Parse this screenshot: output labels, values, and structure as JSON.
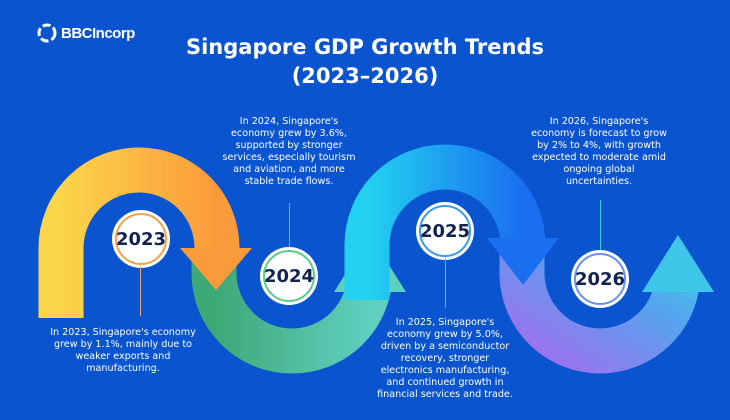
{
  "logo": {
    "text": "BBCIncorp"
  },
  "title": {
    "line1": "Singapore GDP Growth Trends",
    "line2": "(2023–2026)"
  },
  "milestones": [
    {
      "year": "2023",
      "text": [
        "In 2023, Singapore's economy",
        "grew by 1.1%, mainly due to",
        "weaker exports and",
        "manufacturing."
      ],
      "color": "#f5a04a"
    },
    {
      "year": "2024",
      "text": [
        "In 2024, Singapore's",
        "economy grew by 3.6%,",
        "supported by stronger",
        "services, especially tourism",
        "and aviation, and more",
        "stable trade flows."
      ],
      "color": "#5cc98f"
    },
    {
      "year": "2025",
      "text": [
        "In 2025, Singapore's",
        "economy grew by 5.0%,",
        "driven by a semiconductor",
        "recovery, stronger",
        "electronics manufacturing,",
        "and continued growth in",
        "financial services and trade."
      ],
      "color": "#3a9be8"
    },
    {
      "year": "2026",
      "text": [
        "In 2026, Singapore's",
        "economy is forecast to grow",
        "by 2% to 4%, with growth",
        "expected to moderate amid",
        "ongoing global",
        "uncertainties."
      ],
      "color": "#6b8ef0"
    }
  ]
}
